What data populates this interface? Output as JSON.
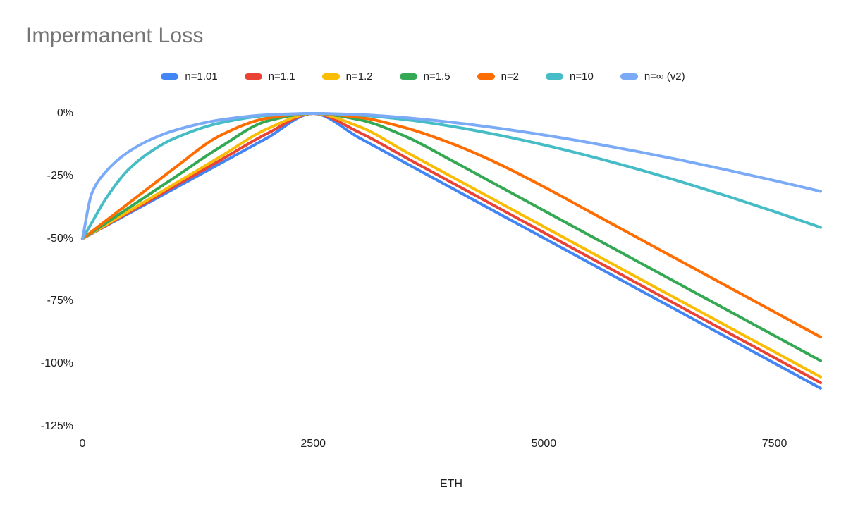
{
  "title": "Impermanent Loss",
  "chart_data": {
    "type": "line",
    "title": "Impermanent Loss",
    "xlabel": "ETH",
    "ylabel": "",
    "grid": false,
    "legend_position": "top",
    "xlim": [
      0,
      8000
    ],
    "ylim": [
      -125,
      0
    ],
    "x_ticks": [
      {
        "value": 0,
        "label": "0"
      },
      {
        "value": 2500,
        "label": "2500"
      },
      {
        "value": 5000,
        "label": "5000"
      },
      {
        "value": 7500,
        "label": "7500"
      }
    ],
    "y_ticks": [
      {
        "value": 0,
        "label": "0%"
      },
      {
        "value": -25,
        "label": "-25%"
      },
      {
        "value": -50,
        "label": "-50%"
      },
      {
        "value": -75,
        "label": "-75%"
      },
      {
        "value": -100,
        "label": "-100%"
      },
      {
        "value": -125,
        "label": "-125%"
      }
    ],
    "x": [
      0,
      100,
      250,
      500,
      750,
      1000,
      1500,
      2000,
      2500,
      3000,
      3500,
      4000,
      4500,
      5000,
      5500,
      6000,
      6500,
      7000,
      7500,
      8000
    ],
    "series": [
      {
        "name": "n=1.01",
        "color": "#4285F4",
        "values": [
          -50,
          -47.99,
          -44.98,
          -39.95,
          -34.93,
          -29.9,
          -19.85,
          -9.8,
          0,
          -9.75,
          -19.75,
          -29.75,
          -39.75,
          -49.75,
          -59.75,
          -69.75,
          -79.75,
          -89.75,
          -99.75,
          -109.75
        ]
      },
      {
        "name": "n=1.1",
        "color": "#EA4335",
        "values": [
          -50,
          -47.9,
          -44.76,
          -39.51,
          -34.27,
          -29.02,
          -18.54,
          -8.05,
          0,
          -7.56,
          -17.56,
          -27.56,
          -37.56,
          -47.56,
          -57.56,
          -67.56,
          -77.56,
          -87.56,
          -97.56,
          -107.56
        ]
      },
      {
        "name": "n=1.2",
        "color": "#FBBC04",
        "values": [
          -50,
          -47.81,
          -44.52,
          -39.05,
          -33.57,
          -28.09,
          -17.14,
          -6.18,
          0,
          -5.23,
          -15.23,
          -25.23,
          -35.23,
          -45.23,
          -55.23,
          -65.23,
          -75.23,
          -85.23,
          -95.23,
          -105.23
        ]
      },
      {
        "name": "n=1.5",
        "color": "#34A853",
        "values": [
          -50,
          -47.55,
          -43.88,
          -37.75,
          -31.63,
          -25.51,
          -13.26,
          -3.04,
          0,
          -2.48,
          -9.15,
          -18.76,
          -28.76,
          -38.76,
          -48.76,
          -58.76,
          -68.76,
          -78.76,
          -88.76,
          -98.76
        ]
      },
      {
        "name": "n=2",
        "color": "#FF6D01",
        "values": [
          -50,
          -47.17,
          -42.93,
          -35.86,
          -28.79,
          -21.72,
          -8.67,
          -1.9,
          0,
          -1.56,
          -5.73,
          -11.98,
          -19.93,
          -29.29,
          -39.29,
          -49.29,
          -59.29,
          -69.29,
          -79.29,
          -89.29
        ]
      },
      {
        "name": "n=10",
        "color": "#46BDC6",
        "values": [
          -50,
          -43.68,
          -34.19,
          -22.34,
          -14.96,
          -9.88,
          -3.72,
          -0.82,
          0,
          -0.67,
          -2.45,
          -5.13,
          -8.53,
          -12.55,
          -17.07,
          -22.05,
          -27.43,
          -33.15,
          -39.19,
          -45.5
        ]
      },
      {
        "name": "n=∞ (v2)",
        "color": "#7BAAF7",
        "values": [
          -50,
          -32,
          -23.38,
          -15.28,
          -10.23,
          -6.75,
          -2.54,
          -0.56,
          0,
          -0.46,
          -1.68,
          -3.51,
          -5.84,
          -8.58,
          -11.68,
          -15.08,
          -18.75,
          -22.67,
          -26.79,
          -31.11
        ]
      }
    ]
  }
}
